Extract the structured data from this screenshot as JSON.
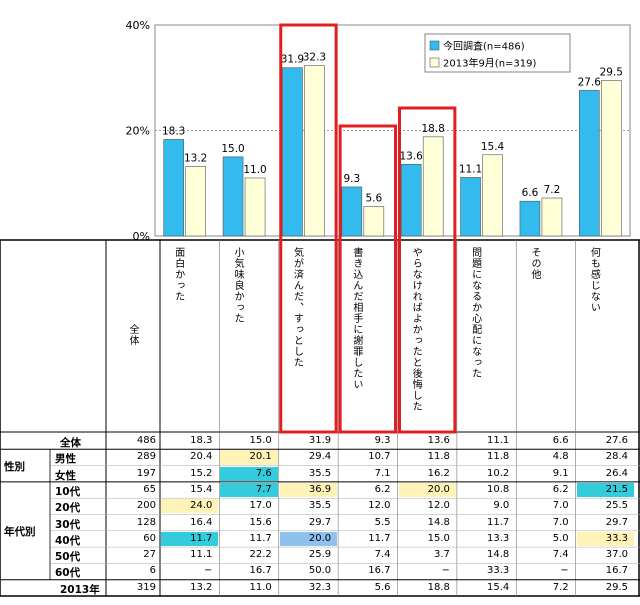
{
  "chart_data": {
    "type": "bar",
    "ylim": [
      0,
      40
    ],
    "yticks": [
      "0%",
      "20%",
      "40%"
    ],
    "series": [
      {
        "name": "今回調査(n=486)",
        "color": "#33bbee",
        "values": [
          18.3,
          15.0,
          31.9,
          9.3,
          13.6,
          11.1,
          6.6,
          27.6
        ]
      },
      {
        "name": "2013年9月(n=319)",
        "color": "#ffffd8",
        "values": [
          13.2,
          11.0,
          32.3,
          5.6,
          18.8,
          15.4,
          7.2,
          29.5
        ]
      }
    ],
    "highlighted_categories": [
      2,
      3,
      4
    ],
    "highlight_color": "#e02020",
    "legend_position": "top-right"
  },
  "table": {
    "total_header": "全体",
    "columns": [
      "面白かった",
      "小気味良かった",
      "気が済んだ、すっとした",
      "書き込んだ相手に謝罪したい",
      "やらなければよかったと後悔した",
      "問題になるか心配になった",
      "その他",
      "何も感じない"
    ],
    "groups": [
      {
        "name": "",
        "rows": [
          0
        ]
      },
      {
        "name": "性別",
        "rows": [
          1,
          2
        ]
      },
      {
        "name": "年代別",
        "rows": [
          3,
          4,
          5,
          6,
          7,
          8
        ]
      },
      {
        "name": "",
        "rows": [
          9
        ]
      }
    ],
    "rows": [
      {
        "label": "全体",
        "n": "486",
        "values": [
          "18.3",
          "15.0",
          "31.9",
          "9.3",
          "13.6",
          "11.1",
          "6.6",
          "27.6"
        ],
        "hl": [
          "",
          "",
          "",
          "",
          "",
          "",
          "",
          ""
        ]
      },
      {
        "label": "男性",
        "n": "289",
        "values": [
          "20.4",
          "20.1",
          "29.4",
          "10.7",
          "11.8",
          "11.8",
          "4.8",
          "28.4"
        ],
        "hl": [
          "",
          "pale",
          "",
          "",
          "",
          "",
          "",
          ""
        ]
      },
      {
        "label": "女性",
        "n": "197",
        "values": [
          "15.2",
          "7.6",
          "35.5",
          "7.1",
          "16.2",
          "10.2",
          "9.1",
          "26.4"
        ],
        "hl": [
          "",
          "cyan",
          "",
          "",
          "",
          "",
          "",
          ""
        ]
      },
      {
        "label": "10代",
        "n": "65",
        "values": [
          "15.4",
          "7.7",
          "36.9",
          "6.2",
          "20.0",
          "10.8",
          "6.2",
          "21.5"
        ],
        "hl": [
          "",
          "cyan",
          "pale",
          "",
          "pale",
          "",
          "",
          "cyan"
        ]
      },
      {
        "label": "20代",
        "n": "200",
        "values": [
          "24.0",
          "17.0",
          "35.5",
          "12.0",
          "12.0",
          "9.0",
          "7.0",
          "25.5"
        ],
        "hl": [
          "pale",
          "",
          "",
          "",
          "",
          "",
          "",
          ""
        ]
      },
      {
        "label": "30代",
        "n": "128",
        "values": [
          "16.4",
          "15.6",
          "29.7",
          "5.5",
          "14.8",
          "11.7",
          "7.0",
          "29.7"
        ],
        "hl": [
          "",
          "",
          "",
          "",
          "",
          "",
          "",
          ""
        ]
      },
      {
        "label": "40代",
        "n": "60",
        "values": [
          "11.7",
          "11.7",
          "20.0",
          "11.7",
          "15.0",
          "13.3",
          "5.0",
          "33.3"
        ],
        "hl": [
          "cyan",
          "",
          "blue",
          "",
          "",
          "",
          "",
          "pale"
        ]
      },
      {
        "label": "50代",
        "n": "27",
        "values": [
          "11.1",
          "22.2",
          "25.9",
          "7.4",
          "3.7",
          "14.8",
          "7.4",
          "37.0"
        ],
        "hl": [
          "",
          "",
          "",
          "",
          "",
          "",
          "",
          ""
        ]
      },
      {
        "label": "60代",
        "n": "6",
        "values": [
          "−",
          "16.7",
          "50.0",
          "16.7",
          "−",
          "33.3",
          "−",
          "16.7"
        ],
        "hl": [
          "",
          "",
          "",
          "",
          "",
          "",
          "",
          ""
        ]
      },
      {
        "label": "2013年",
        "n": "319",
        "values": [
          "13.2",
          "11.0",
          "32.3",
          "5.6",
          "18.8",
          "15.4",
          "7.2",
          "29.5"
        ],
        "hl": [
          "",
          "",
          "",
          "",
          "",
          "",
          "",
          ""
        ]
      }
    ]
  }
}
